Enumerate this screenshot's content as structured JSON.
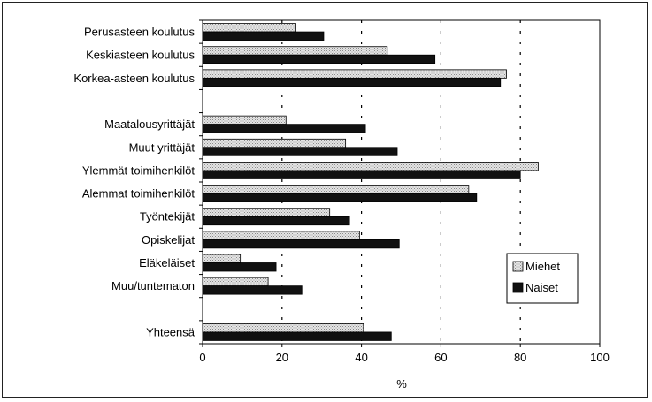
{
  "chart_data": {
    "type": "bar",
    "orientation": "horizontal",
    "title": "",
    "xlabel": "%",
    "ylabel": "",
    "xlim": [
      0,
      100
    ],
    "xticks": [
      "0",
      "20",
      "40",
      "60",
      "80",
      "100"
    ],
    "grid": "vertical dashed",
    "legend_position": "right",
    "categories": [
      "Perusasteen koulutus",
      "Keskiasteen koulutus",
      "Korkea-asteen koulutus",
      "",
      "Maatalousyrittäjät",
      "Muut yrittäjät",
      "Ylemmät toimihenkilöt",
      "Alemmat toimihenkilöt",
      "Työntekijät",
      "Opiskelijat",
      "Eläkeläiset",
      "Muu/tuntematon",
      "",
      "Yhteensä"
    ],
    "series": [
      {
        "name": "Miehet",
        "color": "#d0d0d0",
        "values": [
          23.5,
          46.5,
          76.5,
          null,
          21,
          36,
          84.5,
          67,
          32,
          39.5,
          9.5,
          16.5,
          null,
          40.5
        ]
      },
      {
        "name": "Naiset",
        "color": "#111111",
        "values": [
          30.5,
          58.5,
          75,
          null,
          41,
          49,
          80,
          69,
          37,
          49.5,
          18.5,
          25,
          null,
          47.5
        ]
      }
    ]
  }
}
